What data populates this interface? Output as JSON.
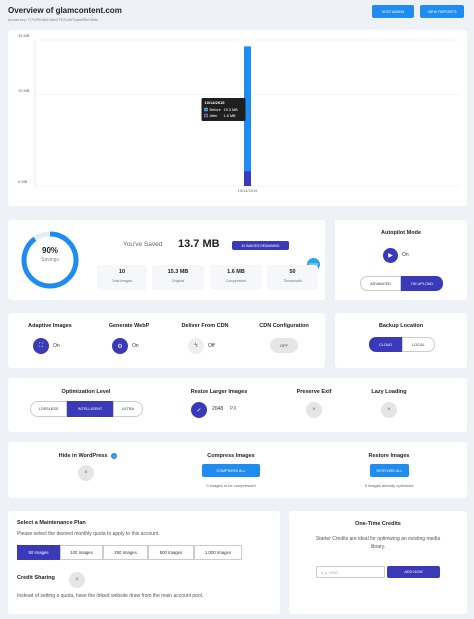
{
  "header": {
    "title": "Overview of glamcontent.com",
    "access_key": "Access key: 717WPbNkhDd8mTFEZo26tTuaiaMRbH5x8b",
    "buttons": [
      "VISIT ADMIN",
      "VIEW REPORTS"
    ]
  },
  "chart_data": {
    "type": "bar",
    "categories": [
      "10/14/2019"
    ],
    "series": [
      {
        "name": "Before",
        "color": "#1e8cf0",
        "values": [
          15.3
        ],
        "value_labels": [
          "15.3 MB"
        ]
      },
      {
        "name": "After",
        "color": "#3a3ab8",
        "values": [
          1.6
        ],
        "value_labels": [
          "1.6 MB"
        ]
      }
    ],
    "ylim": [
      0,
      16
    ],
    "yticks": [
      {
        "value": 0,
        "label": "0 MB"
      },
      {
        "value": 10,
        "label": "10 MB"
      },
      {
        "value": 16,
        "label": "16 MB"
      }
    ],
    "grid": true,
    "tooltip": {
      "title": "10/14/2019"
    }
  },
  "savings": {
    "value": 90,
    "label": "90%",
    "caption": "Savings",
    "saved_label": "You've Saved",
    "saved": "13.7 MB",
    "remaining": "40 IMAGES REMAINING",
    "badge": "FREE",
    "stats": [
      {
        "value": "10",
        "label": "Total Images"
      },
      {
        "value": "15.3 MB",
        "label": "Original"
      },
      {
        "value": "1.6 MB",
        "label": "Compressed"
      },
      {
        "value": "50",
        "label": "Thumbnails"
      }
    ]
  },
  "autopilot": {
    "title": "Autopilot Mode",
    "state": "On",
    "options": [
      "ADVANCED",
      "ON UPLOAD"
    ]
  },
  "features": [
    {
      "title": "Adaptive Images",
      "state": "On"
    },
    {
      "title": "Generate WebP",
      "state": "On"
    },
    {
      "title": "Deliver From CDN",
      "state": "Off"
    },
    {
      "title": "CDN Configuration",
      "state": "OFF"
    }
  ],
  "backup": {
    "title": "Backup Location",
    "options": [
      "CLOUD",
      "LOCAL"
    ]
  },
  "optimization": {
    "title": "Optimization Level",
    "options": [
      "LOSSLESS",
      "INTELLIGENT",
      "ULTRA"
    ]
  },
  "resize": {
    "title": "Resize Larger Images",
    "value": "2048",
    "unit": "PX"
  },
  "exif": {
    "title": "Preserve Exif"
  },
  "lazy": {
    "title": "Lazy Loading"
  },
  "hide": {
    "title": "Hide in WordPress",
    "help": "?"
  },
  "compress": {
    "title": "Compress Images",
    "button": "COMPRESS ALL",
    "caption": "0 images to be compressed"
  },
  "restore": {
    "title": "Restore Images",
    "button": "RESTORE ALL",
    "caption": "5 images already optimized"
  },
  "plan": {
    "title": "Select a Maintenance Plan",
    "description": "Please select the desired monthly quota to apply to this account.",
    "options": [
      "50 Images",
      "100 Images",
      "250 Images",
      "500 Images",
      "1,000 Images"
    ],
    "sharing_title": "Credit Sharing",
    "sharing_description": "Instead of setting a quota, have the linked website draw from the main account pool."
  },
  "credits": {
    "title": "One-Time Credits",
    "description": "Starter Credits are ideal for optimizing an existing media library.",
    "placeholder": "e.g. 1000",
    "button": "ADD NOW"
  }
}
